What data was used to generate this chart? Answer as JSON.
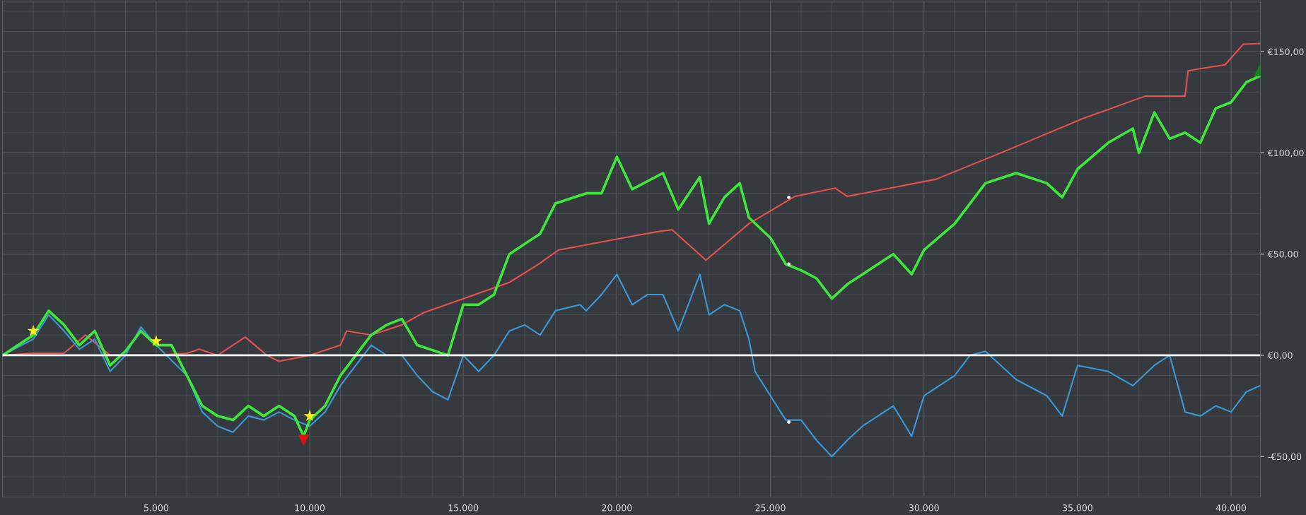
{
  "chart_data": {
    "type": "line",
    "grid": true,
    "legend": false,
    "xlim": [
      0,
      40950
    ],
    "ylim": [
      -70,
      175
    ],
    "xticks": [
      {
        "value": 5000,
        "label": "5.000"
      },
      {
        "value": 10000,
        "label": "10.000"
      },
      {
        "value": 15000,
        "label": "15.000"
      },
      {
        "value": 20000,
        "label": "20.000"
      },
      {
        "value": 25000,
        "label": "25.000"
      },
      {
        "value": 30000,
        "label": "30.000"
      },
      {
        "value": 35000,
        "label": "35.000"
      },
      {
        "value": 40000,
        "label": "40.000"
      }
    ],
    "yticks": [
      {
        "value": -50,
        "label": "-€50,00"
      },
      {
        "value": 0,
        "label": "€0,00"
      },
      {
        "value": 50,
        "label": "€50,00"
      },
      {
        "value": 100,
        "label": "€100,00"
      },
      {
        "value": 150,
        "label": "€150,00"
      }
    ],
    "ref_lines": [
      {
        "axis": "y",
        "value": 0,
        "color": "#ffffff",
        "line_style": "solid"
      }
    ],
    "series": [
      {
        "color": "#e8504f",
        "x": [
          0,
          1000,
          2000,
          2700,
          3500,
          5000,
          6000,
          6400,
          7000,
          7900,
          8600,
          9000,
          10000,
          11000,
          11200,
          12000,
          13000,
          13700,
          15200,
          16500,
          17400,
          18100,
          20200,
          21300,
          21800,
          22900,
          24300,
          25800,
          27100,
          27500,
          30400,
          32600,
          35100,
          37200,
          38500,
          38600,
          39800,
          40400,
          40950
        ],
        "values": [
          0,
          1,
          1,
          10,
          0,
          0,
          1,
          3,
          0,
          9,
          0,
          -3,
          0,
          5,
          12,
          10,
          15,
          21,
          29,
          36,
          44.5,
          52,
          58,
          61,
          62,
          47,
          65,
          78.5,
          82.6,
          78.5,
          87,
          100.6,
          116.5,
          128,
          128,
          140.6,
          143.5,
          153.7,
          154
        ]
      },
      {
        "color": "#3a9ad9",
        "x": [
          0,
          1000,
          1500,
          2000,
          2500,
          3000,
          3500,
          4000,
          4500,
          5000,
          6000,
          6500,
          7000,
          7500,
          8000,
          8500,
          9000,
          9500,
          10000,
          10500,
          11000,
          11500,
          12000,
          12500,
          13000,
          13500,
          14000,
          14500,
          15000,
          15500,
          16000,
          16500,
          17000,
          17500,
          18000,
          18800,
          19000,
          19500,
          20000,
          20500,
          21000,
          21500,
          22000,
          22700,
          23000,
          23500,
          24000,
          24300,
          24500,
          25000,
          25500,
          26000,
          26500,
          27000,
          27500,
          28000,
          29000,
          29600,
          30000,
          31000,
          31500,
          32000,
          33000,
          34000,
          34500,
          35000,
          36000,
          36800,
          37500,
          38000,
          38500,
          39000,
          39500,
          40000,
          40500,
          40950
        ],
        "values": [
          0,
          8,
          20,
          12,
          3,
          8,
          -8,
          0,
          14,
          5,
          -10,
          -28,
          -35,
          -38,
          -30,
          -32,
          -28,
          -32,
          -35,
          -28,
          -15,
          -5,
          5,
          0,
          0,
          -10,
          -18,
          -22,
          0,
          -8,
          0,
          12,
          15,
          10,
          22,
          25,
          22,
          30,
          40,
          25,
          30,
          30,
          12,
          40,
          20,
          25,
          22,
          8,
          -8,
          -20,
          -32,
          -32,
          -42,
          -50,
          -42,
          -35,
          -25,
          -40,
          -20,
          -10,
          0,
          2,
          -12,
          -20,
          -30,
          -5,
          -8,
          -15,
          -5,
          0,
          -28,
          -30,
          -25,
          -28,
          -18,
          -15
        ]
      },
      {
        "color": "#3ee83a",
        "x": [
          0,
          1000,
          1500,
          2000,
          2500,
          3000,
          3500,
          4000,
          4500,
          5000,
          5500,
          6000,
          6500,
          7000,
          7500,
          8000,
          8500,
          9000,
          9500,
          9800,
          10000,
          10500,
          11000,
          11500,
          12000,
          12500,
          13000,
          13500,
          14500,
          15000,
          15500,
          16000,
          16500,
          17000,
          17500,
          18000,
          19000,
          19500,
          20000,
          20500,
          21500,
          22000,
          22700,
          23000,
          23500,
          24000,
          24300,
          25000,
          25500,
          26000,
          26500,
          27000,
          27500,
          28000,
          29000,
          29600,
          30000,
          31000,
          32000,
          33000,
          34000,
          34500,
          35000,
          36000,
          36800,
          37000,
          37500,
          38000,
          38500,
          39000,
          39500,
          40000,
          40500,
          40950
        ],
        "values": [
          0,
          10,
          22,
          15,
          5,
          12,
          -5,
          2,
          12,
          5,
          5,
          -10,
          -25,
          -30,
          -32,
          -25,
          -30,
          -25,
          -30,
          -40,
          -32,
          -25,
          -10,
          0,
          10,
          15,
          18,
          5,
          0,
          25,
          25,
          30,
          50,
          55,
          60,
          75,
          80,
          80,
          98,
          82,
          90,
          72,
          88,
          65,
          78,
          85,
          68,
          58,
          45,
          42,
          38,
          28,
          35,
          40,
          50,
          40,
          52,
          65,
          85,
          90,
          85,
          78,
          92,
          105,
          112,
          100,
          120,
          107,
          110,
          105,
          122,
          125,
          135,
          138
        ]
      },
      {
        "type": "scatter",
        "marker": "star",
        "color": "#ffee22",
        "x": [
          1000,
          5000,
          10000
        ],
        "values": [
          12,
          7,
          -30
        ]
      },
      {
        "type": "scatter",
        "marker": "triangle_down",
        "color": "#e01010",
        "x": [
          9800
        ],
        "values": [
          -42
        ]
      },
      {
        "type": "scatter",
        "marker": "triangle",
        "color": "#0a8a0a",
        "x": [
          40950
        ],
        "values": [
          141
        ]
      },
      {
        "type": "scatter",
        "marker": "circle",
        "color": "#ffffff",
        "x": [
          25600,
          25600,
          25600
        ],
        "values": [
          78,
          45,
          -33
        ]
      }
    ]
  }
}
